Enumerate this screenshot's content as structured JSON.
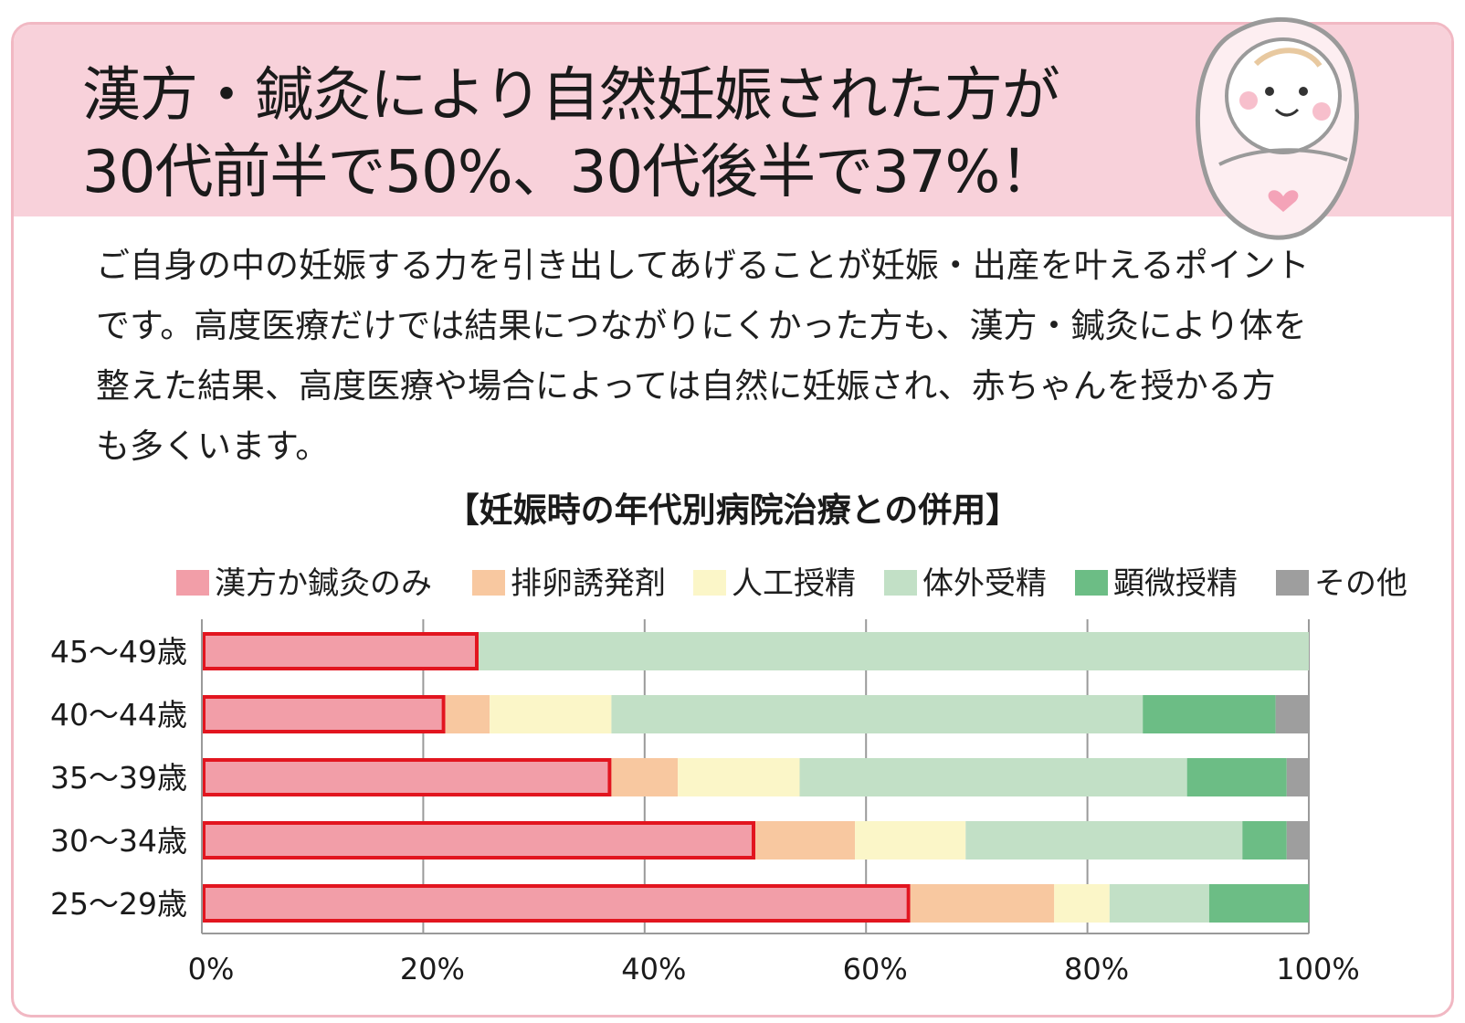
{
  "header": {
    "title_line1": "漢方・鍼灸により自然妊娠された方が",
    "title_line2": "30代前半で50%、30代後半で37%！"
  },
  "mascot": {
    "icon": "baby-wrapped-in-blanket-icon"
  },
  "body": {
    "lines": [
      "ご自身の中の妊娠する力を引き出してあげることが妊娠・出産を叶えるポイント",
      "です。高度医療だけでは結果につながりにくかった方も、漢方・鍼灸により体を",
      "整えた結果、高度医療や場合によっては自然に妊娠され、赤ちゃんを授かる方",
      "も多くいます。"
    ]
  },
  "chart_data": {
    "type": "bar",
    "orientation": "horizontal",
    "stacked": true,
    "title": "【妊娠時の年代別病院治療との併用】",
    "categories": [
      "45〜49歳",
      "40〜44歳",
      "35〜39歳",
      "30〜34歳",
      "25〜29歳"
    ],
    "series": [
      {
        "name": "漢方か鍼灸のみ",
        "color": "#f29ea8",
        "values": [
          25,
          22,
          37,
          50,
          64
        ]
      },
      {
        "name": "排卵誘発剤",
        "color": "#f8c8a0",
        "values": [
          0,
          4,
          6,
          9,
          13
        ]
      },
      {
        "name": "人工授精",
        "color": "#fbf6c8",
        "values": [
          0,
          11,
          11,
          10,
          5
        ]
      },
      {
        "name": "体外受精",
        "color": "#c2e0c6",
        "values": [
          75,
          48,
          35,
          25,
          9
        ]
      },
      {
        "name": "顕微授精",
        "color": "#6cbd85",
        "values": [
          0,
          12,
          9,
          4,
          9
        ]
      },
      {
        "name": "その他",
        "color": "#9e9e9e",
        "values": [
          0,
          3,
          2,
          2,
          0
        ]
      }
    ],
    "highlight_series": "漢方か鍼灸のみ",
    "highlight_color": "#e2151f",
    "xlim": [
      0,
      100
    ],
    "xticks": [
      "0%",
      "20%",
      "40%",
      "60%",
      "80%",
      "100%"
    ],
    "grid": true,
    "legend": "top"
  }
}
